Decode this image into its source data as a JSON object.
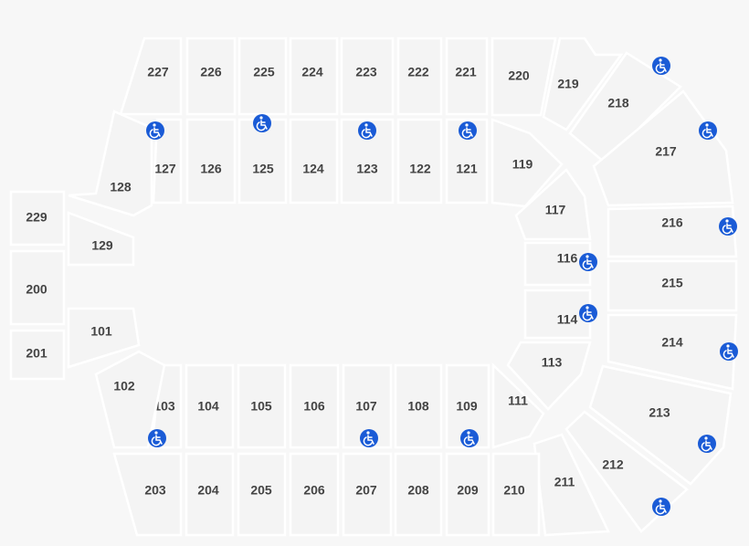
{
  "sections": [
    "227",
    "226",
    "225",
    "224",
    "223",
    "222",
    "221",
    "220",
    "219",
    "218",
    "217",
    "216",
    "215",
    "214",
    "213",
    "212",
    "211",
    "210",
    "209",
    "208",
    "207",
    "206",
    "205",
    "204",
    "203",
    "127",
    "126",
    "125",
    "124",
    "123",
    "122",
    "121",
    "119",
    "117",
    "116",
    "114",
    "113",
    "111",
    "103",
    "104",
    "105",
    "106",
    "107",
    "108",
    "109",
    "128",
    "129",
    "101",
    "102",
    "229",
    "200",
    "201"
  ]
}
